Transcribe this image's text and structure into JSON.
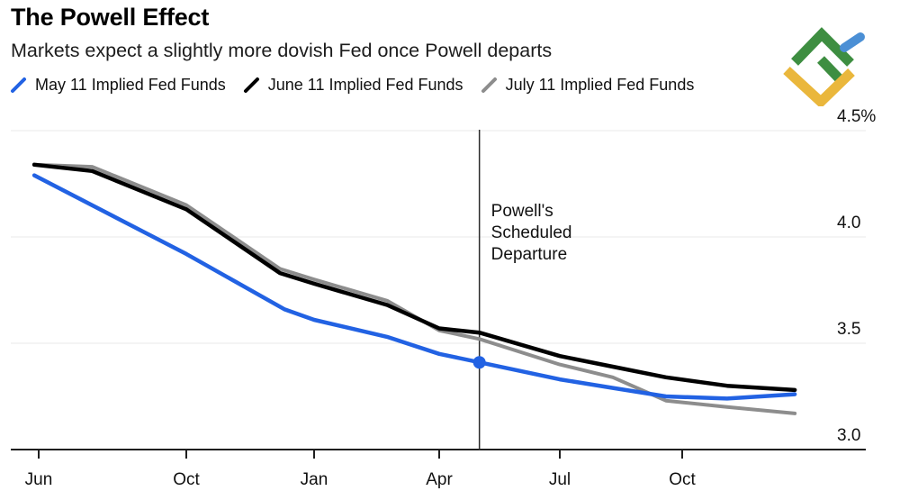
{
  "header": {
    "title": "The Powell Effect",
    "subtitle": "Markets expect a slightly more dovish Fed once Powell departs"
  },
  "legend": [
    {
      "label": "May 11 Implied Fed Funds",
      "color": "#2262e3"
    },
    {
      "label": "June 11 Implied Fed Funds",
      "color": "#000000"
    },
    {
      "label": "July 11 Implied Fed Funds",
      "color": "#8d8d8d"
    }
  ],
  "logo": {
    "name": "litefinance-logo",
    "green": "#3e8e41",
    "blue": "#4b8fd5",
    "yellow": "#eab73c"
  },
  "colors": {
    "grid": "#e9e9e9",
    "axis": "#1f1f1f",
    "vline": "#2b2b2b"
  },
  "chart_data": {
    "type": "line",
    "unit": "%",
    "title": "The Powell Effect",
    "subtitle": "Markets expect a slightly more dovish Fed once Powell departs",
    "legend_position": "top",
    "grid": true,
    "x_axis": {
      "note": "months measured from first tick (Jun); ticks Jun 2025 - Oct 2026",
      "tick_labels": [
        "Jun",
        "Oct",
        "Jan",
        "Apr",
        "Jul",
        "Oct"
      ],
      "tick_months": [
        0,
        4,
        7,
        10,
        13,
        16
      ],
      "range_months": [
        -0.12,
        18.76
      ]
    },
    "y_axis": {
      "range": [
        3.0,
        4.5
      ],
      "ticks": [
        {
          "value": 4.5,
          "label": "4.5%"
        },
        {
          "value": 4.0,
          "label": "4.0"
        },
        {
          "value": 3.5,
          "label": "3.5"
        },
        {
          "value": 3.0,
          "label": "3.0"
        }
      ]
    },
    "series": [
      {
        "name": "July 11 Implied Fed Funds",
        "color": "#8d8d8d",
        "width": 4,
        "points": [
          [
            -0.12,
            4.34
          ],
          [
            1.45,
            4.33
          ],
          [
            4,
            4.15
          ],
          [
            6.2,
            3.85
          ],
          [
            7,
            3.8
          ],
          [
            8.75,
            3.7
          ],
          [
            10,
            3.56
          ],
          [
            11,
            3.52
          ],
          [
            13,
            3.4
          ],
          [
            14.3,
            3.34
          ],
          [
            15.6,
            3.23
          ],
          [
            17.1,
            3.2
          ],
          [
            18.76,
            3.17
          ]
        ]
      },
      {
        "name": "May 11 Implied Fed Funds",
        "color": "#2262e3",
        "width": 4.5,
        "points": [
          [
            -0.12,
            4.29
          ],
          [
            4,
            3.92
          ],
          [
            6.3,
            3.66
          ],
          [
            7,
            3.61
          ],
          [
            8.75,
            3.53
          ],
          [
            10,
            3.45
          ],
          [
            11,
            3.41
          ],
          [
            13,
            3.33
          ],
          [
            14.3,
            3.29
          ],
          [
            15.6,
            3.25
          ],
          [
            17.1,
            3.24
          ],
          [
            18.76,
            3.26
          ]
        ]
      },
      {
        "name": "June 11 Implied Fed Funds",
        "color": "#000000",
        "width": 4.5,
        "points": [
          [
            -0.12,
            4.34
          ],
          [
            1.45,
            4.31
          ],
          [
            4,
            4.13
          ],
          [
            6.2,
            3.83
          ],
          [
            7,
            3.78
          ],
          [
            8.75,
            3.68
          ],
          [
            10,
            3.57
          ],
          [
            11,
            3.55
          ],
          [
            13,
            3.44
          ],
          [
            14.3,
            3.39
          ],
          [
            15.6,
            3.34
          ],
          [
            17.1,
            3.3
          ],
          [
            18.76,
            3.28
          ]
        ]
      }
    ],
    "annotation": {
      "lines": [
        "Powell's",
        "Scheduled",
        "Departure"
      ],
      "month": 11,
      "marker": {
        "series": "May 11 Implied Fed Funds",
        "month": 11,
        "value": 3.41,
        "color": "#2262e3"
      }
    }
  }
}
